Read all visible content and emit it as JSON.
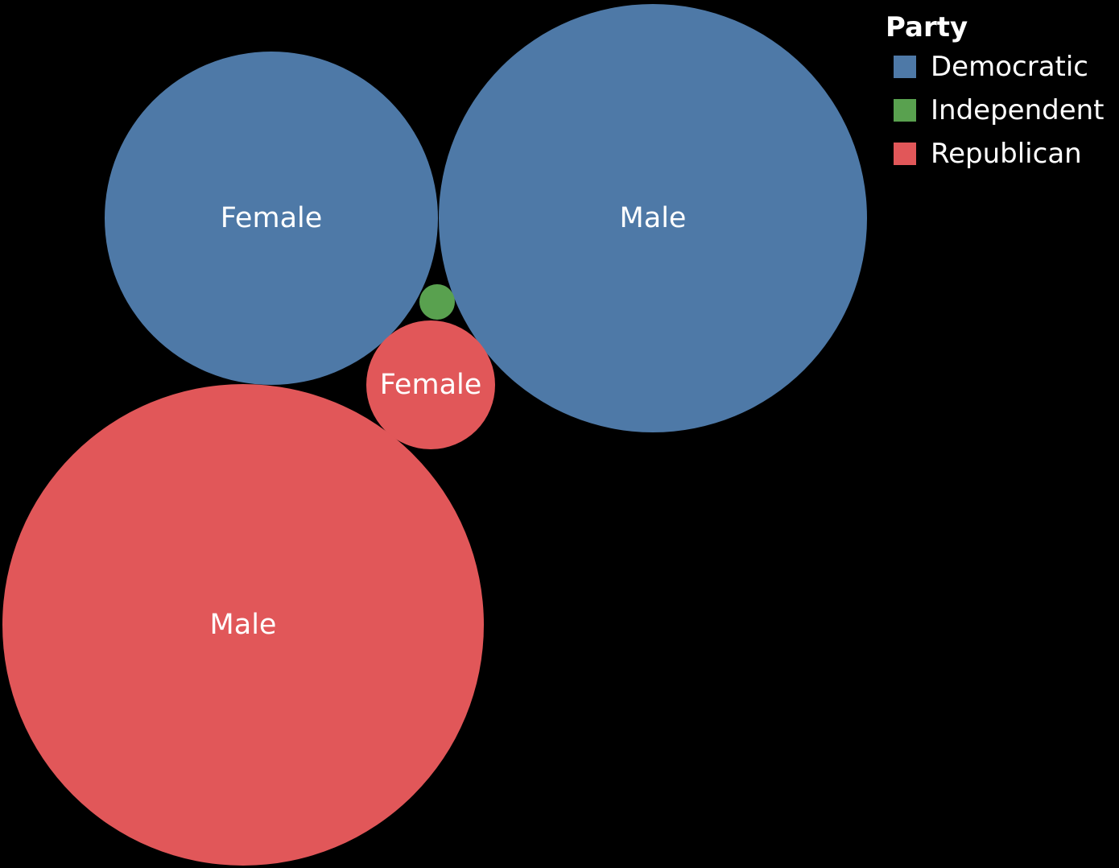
{
  "chart_data": {
    "type": "packed-bubble",
    "legend": {
      "title": "Party",
      "placement": "top-right",
      "items": [
        {
          "label": "Democratic",
          "color": "#4E79A7"
        },
        {
          "label": "Independent",
          "color": "#59A14F"
        },
        {
          "label": "Republican",
          "color": "#E15759"
        }
      ]
    },
    "bubbles": [
      {
        "party": "Democratic",
        "label": "Female",
        "color": "#4E79A7"
      },
      {
        "party": "Democratic",
        "label": "Male",
        "color": "#4E79A7"
      },
      {
        "party": "Independent",
        "label": "",
        "color": "#59A14F"
      },
      {
        "party": "Republican",
        "label": "Female",
        "color": "#E15759"
      },
      {
        "party": "Republican",
        "label": "Male",
        "color": "#E15759"
      }
    ]
  }
}
